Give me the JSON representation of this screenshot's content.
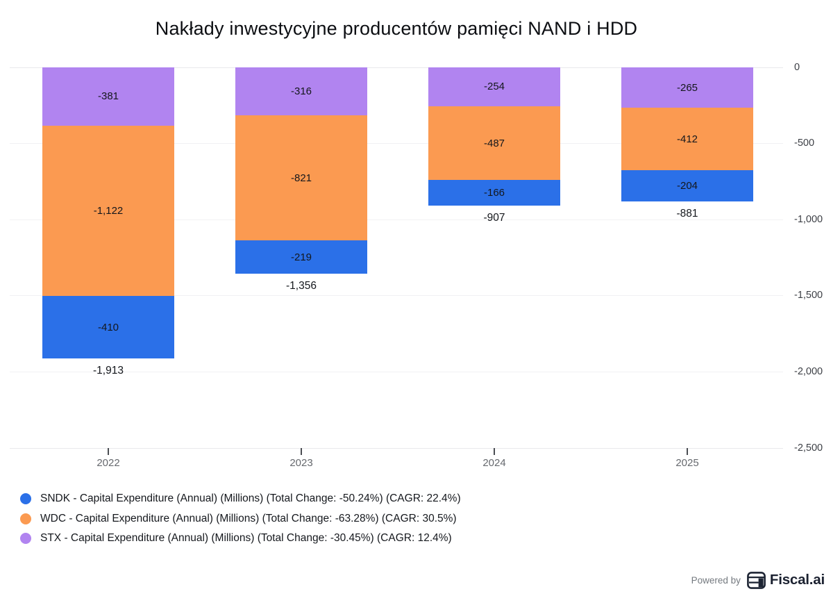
{
  "title": "Nakłady inwestycyjne producentów pamięci NAND i HDD",
  "chart_data": {
    "type": "bar",
    "stacked": true,
    "orientation": "vertical",
    "categories": [
      "2022",
      "2023",
      "2024",
      "2025"
    ],
    "series": [
      {
        "name": "SNDK",
        "color": "#2b70e8",
        "values": [
          -410,
          -219,
          -166,
          -204
        ],
        "labels": [
          "-410",
          "-219",
          "-166",
          "-204"
        ]
      },
      {
        "name": "WDC",
        "color": "#fb9a51",
        "values": [
          -1122,
          -821,
          -487,
          -412
        ],
        "labels": [
          "-1,122",
          "-821",
          "-487",
          "-412"
        ]
      },
      {
        "name": "STX",
        "color": "#b184f0",
        "values": [
          -381,
          -316,
          -254,
          -265
        ],
        "labels": [
          "-381",
          "-316",
          "-254",
          "-265"
        ]
      }
    ],
    "stack_order_top_to_bottom": [
      "STX",
      "WDC",
      "SNDK"
    ],
    "totals": [
      -1913,
      -1356,
      -907,
      -881
    ],
    "total_labels": [
      "-1,913",
      "-1,356",
      "-907",
      "-881"
    ],
    "y_axis": {
      "side": "right",
      "min": -2500,
      "max": 0,
      "tick_values": [
        0,
        -500,
        -1000,
        -1500,
        -2000,
        -2500
      ],
      "tick_labels": [
        "0",
        "-500",
        "-1,000",
        "-1,500",
        "-2,000",
        "-2,500"
      ]
    },
    "grid": true,
    "legend_position": "bottom-left"
  },
  "legend": {
    "items": [
      {
        "name": "SNDK",
        "color": "#2b70e8",
        "label": "SNDK - Capital Expenditure (Annual) (Millions) (Total Change: -50.24%) (CAGR: 22.4%)"
      },
      {
        "name": "WDC",
        "color": "#fb9a51",
        "label": "WDC - Capital Expenditure (Annual) (Millions) (Total Change: -63.28%) (CAGR: 30.5%)"
      },
      {
        "name": "STX",
        "color": "#b184f0",
        "label": "STX - Capital Expenditure (Annual) (Millions) (Total Change: -30.45%) (CAGR: 12.4%)"
      }
    ]
  },
  "footer": {
    "powered_by": "Powered by",
    "brand": "Fiscal.ai"
  }
}
